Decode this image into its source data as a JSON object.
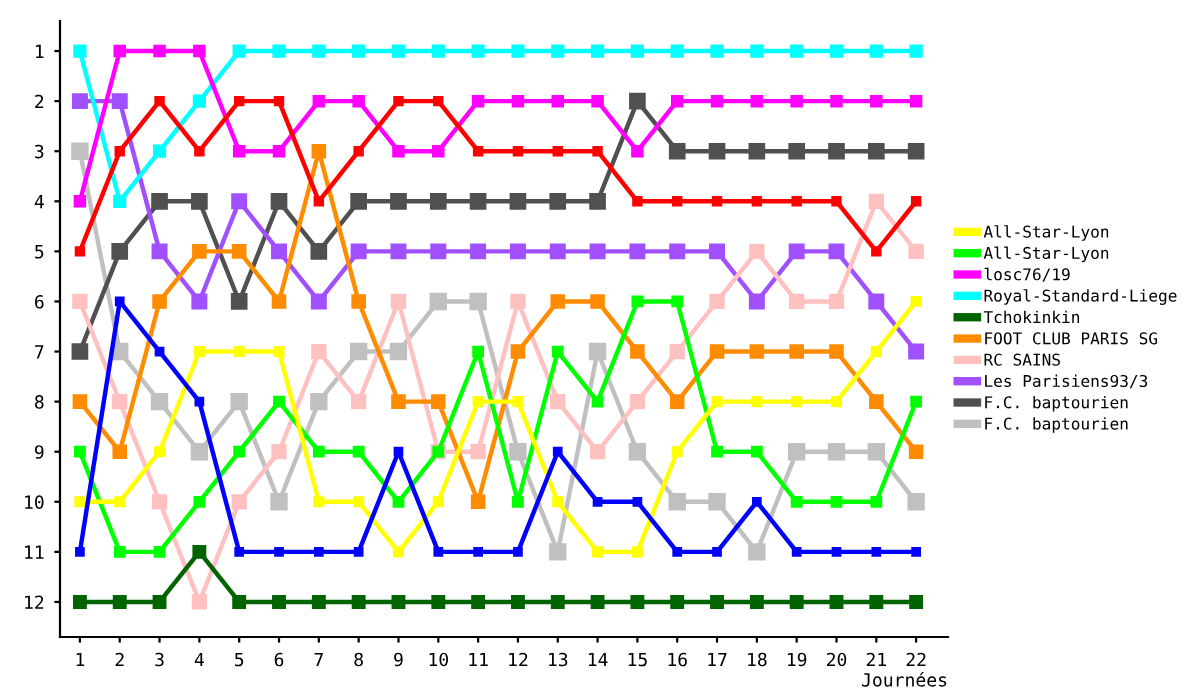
{
  "chart_data": {
    "type": "line",
    "xlabel": "Journées",
    "x": [
      1,
      2,
      3,
      4,
      5,
      6,
      7,
      8,
      9,
      10,
      11,
      12,
      13,
      14,
      15,
      16,
      17,
      18,
      19,
      20,
      21,
      22
    ],
    "xlim": [
      0.5,
      22.8
    ],
    "xticks": [
      1,
      2,
      3,
      4,
      5,
      6,
      7,
      8,
      9,
      10,
      11,
      12,
      13,
      14,
      15,
      16,
      17,
      18,
      19,
      20,
      21,
      22
    ],
    "ylim": [
      12.7,
      0.4
    ],
    "yticks": [
      1,
      2,
      3,
      4,
      5,
      6,
      7,
      8,
      9,
      10,
      11,
      12
    ],
    "grid": false,
    "legend": "right",
    "marker": "square",
    "line_style": "solid",
    "series": [
      {
        "color": "#0000ff",
        "values": [
          11,
          6,
          7,
          8,
          11,
          11,
          11,
          11,
          9,
          11,
          11,
          11,
          9,
          10,
          10,
          11,
          11,
          10,
          11,
          11,
          11,
          11
        ]
      },
      {
        "color": "#ff0000",
        "values": [
          5,
          3,
          2,
          3,
          2,
          2,
          4,
          3,
          2,
          2,
          3,
          3,
          3,
          3,
          4,
          4,
          4,
          4,
          4,
          4,
          5,
          4
        ]
      },
      {
        "name": "All-Star-Lyon",
        "color": "#ffff00",
        "values": [
          10,
          10,
          9,
          7,
          7,
          7,
          10,
          10,
          11,
          10,
          8,
          8,
          10,
          11,
          11,
          9,
          8,
          8,
          8,
          8,
          7,
          6
        ]
      },
      {
        "name": "All-Star-Lyon",
        "color": "#00ff00",
        "values": [
          9,
          11,
          11,
          10,
          9,
          8,
          9,
          9,
          10,
          9,
          7,
          10,
          7,
          8,
          6,
          6,
          9,
          9,
          10,
          10,
          10,
          8
        ]
      },
      {
        "name": "losc76/19",
        "color": "#ff00ff",
        "values": [
          4,
          1,
          1,
          1,
          3,
          3,
          2,
          2,
          3,
          3,
          2,
          2,
          2,
          2,
          3,
          2,
          2,
          2,
          2,
          2,
          2,
          2
        ]
      },
      {
        "name": "Royal-Standard-Liege",
        "color": "#00ffff",
        "values": [
          1,
          4,
          3,
          2,
          1,
          1,
          1,
          1,
          1,
          1,
          1,
          1,
          1,
          1,
          1,
          1,
          1,
          1,
          1,
          1,
          1,
          1
        ]
      },
      {
        "name": "Tchokinkin",
        "color": "#006400",
        "values": [
          12,
          12,
          12,
          11,
          12,
          12,
          12,
          12,
          12,
          12,
          12,
          12,
          12,
          12,
          12,
          12,
          12,
          12,
          12,
          12,
          12,
          12
        ]
      },
      {
        "name": "FOOT CLUB PARIS SG",
        "color": "#ff8c00",
        "values": [
          8,
          9,
          6,
          5,
          5,
          6,
          3,
          6,
          8,
          8,
          10,
          7,
          6,
          6,
          7,
          8,
          7,
          7,
          7,
          7,
          8,
          9
        ]
      },
      {
        "name": "RC SAINS",
        "color": "#ffc0c0",
        "values": [
          6,
          8,
          10,
          12,
          10,
          9,
          7,
          8,
          6,
          9,
          9,
          6,
          8,
          9,
          8,
          7,
          6,
          5,
          6,
          6,
          4,
          5
        ]
      },
      {
        "name": "Les Parisiens93/3",
        "color": "#a050ff",
        "values": [
          2,
          2,
          5,
          6,
          4,
          5,
          6,
          5,
          5,
          5,
          5,
          5,
          5,
          5,
          5,
          5,
          5,
          6,
          5,
          5,
          6,
          7
        ]
      },
      {
        "name": "F.C. baptourien",
        "color": "#505050",
        "values": [
          7,
          5,
          4,
          4,
          6,
          4,
          5,
          4,
          4,
          4,
          4,
          4,
          4,
          4,
          2,
          3,
          3,
          3,
          3,
          3,
          3,
          3
        ]
      },
      {
        "name": "F.C. baptourien",
        "color": "#c0c0c0",
        "values": [
          3,
          7,
          8,
          9,
          8,
          10,
          8,
          7,
          7,
          6,
          6,
          9,
          11,
          7,
          9,
          10,
          10,
          11,
          9,
          9,
          9,
          10
        ]
      }
    ]
  }
}
